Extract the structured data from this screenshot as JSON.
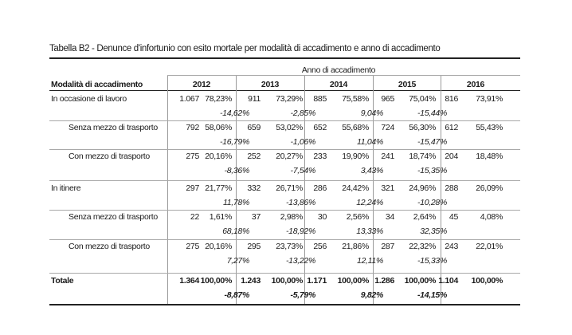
{
  "title": "Tabella B2 - Denunce d'infortunio con esito mortale per modalità di accadimento e anno di accadimento",
  "header": {
    "group_label": "Anno di accadimento",
    "row_label": "Modalità di accadimento",
    "years": [
      "2012",
      "2013",
      "2014",
      "2015",
      "2016"
    ]
  },
  "rows": [
    {
      "label": "In occasione di lavoro",
      "values": [
        {
          "n": "1.067",
          "pct": "78,23%"
        },
        {
          "n": "911",
          "pct": "73,29%",
          "var": "-14,62%"
        },
        {
          "n": "885",
          "pct": "75,58%",
          "var": "-2,85%"
        },
        {
          "n": "965",
          "pct": "75,04%",
          "var": "9,04%"
        },
        {
          "n": "816",
          "pct": "73,91%",
          "var": "-15,44%"
        }
      ]
    },
    {
      "label": "Senza mezzo di trasporto",
      "values": [
        {
          "n": "792",
          "pct": "58,06%"
        },
        {
          "n": "659",
          "pct": "53,02%",
          "var": "-16,79%"
        },
        {
          "n": "652",
          "pct": "55,68%",
          "var": "-1,06%"
        },
        {
          "n": "724",
          "pct": "56,30%",
          "var": "11,04%"
        },
        {
          "n": "612",
          "pct": "55,43%",
          "var": "-15,47%"
        }
      ]
    },
    {
      "label": "Con mezzo di trasporto",
      "values": [
        {
          "n": "275",
          "pct": "20,16%"
        },
        {
          "n": "252",
          "pct": "20,27%",
          "var": "-8,36%"
        },
        {
          "n": "233",
          "pct": "19,90%",
          "var": "-7,54%"
        },
        {
          "n": "241",
          "pct": "18,74%",
          "var": "3,43%"
        },
        {
          "n": "204",
          "pct": "18,48%",
          "var": "-15,35%"
        }
      ]
    },
    {
      "label": "In itinere",
      "values": [
        {
          "n": "297",
          "pct": "21,77%"
        },
        {
          "n": "332",
          "pct": "26,71%",
          "var": "11,78%"
        },
        {
          "n": "286",
          "pct": "24,42%",
          "var": "-13,86%"
        },
        {
          "n": "321",
          "pct": "24,96%",
          "var": "12,24%"
        },
        {
          "n": "288",
          "pct": "26,09%",
          "var": "-10,28%"
        }
      ]
    },
    {
      "label": "Senza mezzo di trasporto",
      "values": [
        {
          "n": "22",
          "pct": "1,61%"
        },
        {
          "n": "37",
          "pct": "2,98%",
          "var": "68,18%"
        },
        {
          "n": "30",
          "pct": "2,56%",
          "var": "-18,92%"
        },
        {
          "n": "34",
          "pct": "2,64%",
          "var": "13,33%"
        },
        {
          "n": "45",
          "pct": "4,08%",
          "var": "32,35%"
        }
      ]
    },
    {
      "label": "Con mezzo di trasporto",
      "values": [
        {
          "n": "275",
          "pct": "20,16%"
        },
        {
          "n": "295",
          "pct": "23,73%",
          "var": "7,27%"
        },
        {
          "n": "256",
          "pct": "21,86%",
          "var": "-13,22%"
        },
        {
          "n": "287",
          "pct": "22,32%",
          "var": "12,11%"
        },
        {
          "n": "243",
          "pct": "22,01%",
          "var": "-15,33%"
        }
      ]
    },
    {
      "label": "Totale",
      "bold": true,
      "values": [
        {
          "n": "1.364",
          "pct": "100,00%"
        },
        {
          "n": "1.243",
          "pct": "100,00%",
          "var": "-8,87%"
        },
        {
          "n": "1.171",
          "pct": "100,00%",
          "var": "-5,79%"
        },
        {
          "n": "1.286",
          "pct": "100,00%",
          "var": "9,82%"
        },
        {
          "n": "1.104",
          "pct": "100,00%",
          "var": "-14,15%"
        }
      ]
    }
  ]
}
